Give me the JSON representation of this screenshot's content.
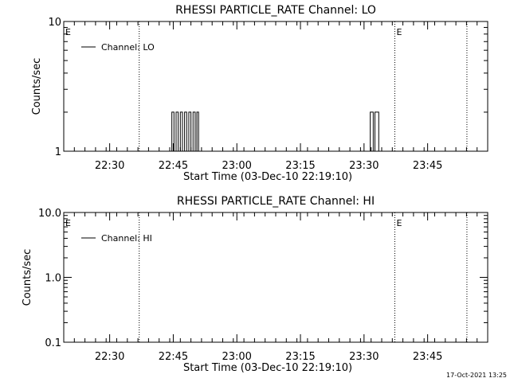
{
  "chart_data": [
    {
      "type": "line",
      "title": "RHESSI PARTICLE_RATE Channel: LO",
      "xlabel": "Start Time (03-Dec-10 22:19:10)",
      "ylabel": "Counts/sec",
      "yscale": "log",
      "ylim": [
        1,
        10
      ],
      "y_tick_labels": [
        "1",
        "10"
      ],
      "x_tick_labels": [
        "22:30",
        "22:45",
        "23:00",
        "23:15",
        "23:30",
        "23:45"
      ],
      "x_tick_minutes": [
        10.833,
        25.833,
        40.833,
        55.833,
        70.833,
        85.833
      ],
      "xlim_minutes": [
        0,
        100
      ],
      "legend": {
        "entries": [
          "Channel: LO"
        ],
        "position": "top-left"
      },
      "markers": [
        {
          "label": "E",
          "minute": 0
        },
        {
          "label": "E",
          "minute": 78.1
        }
      ],
      "vlines_minutes": [
        17.8,
        78.1,
        95.1
      ],
      "series": [
        {
          "name": "Channel: LO",
          "points": [
            [
              25.0,
              1
            ],
            [
              25.5,
              2
            ],
            [
              26.0,
              1
            ],
            [
              26.5,
              2
            ],
            [
              27.0,
              1
            ],
            [
              27.5,
              2
            ],
            [
              28.0,
              1
            ],
            [
              28.5,
              2
            ],
            [
              29.0,
              1
            ],
            [
              29.5,
              2
            ],
            [
              30.0,
              1
            ],
            [
              30.5,
              2
            ],
            [
              31.0,
              1
            ],
            [
              31.4,
              2
            ],
            [
              31.8,
              1
            ],
            [
              72.0,
              1
            ],
            [
              72.3,
              2
            ],
            [
              72.7,
              2
            ],
            [
              73.0,
              1
            ],
            [
              73.4,
              2
            ],
            [
              74.0,
              2
            ],
            [
              74.3,
              1
            ]
          ]
        }
      ]
    },
    {
      "type": "line",
      "title": "RHESSI PARTICLE_RATE Channel: HI",
      "xlabel": "Start Time (03-Dec-10 22:19:10)",
      "ylabel": "Counts/sec",
      "yscale": "log",
      "ylim": [
        0.1,
        10
      ],
      "y_tick_labels": [
        "0.1",
        "1.0",
        "10.0"
      ],
      "x_tick_labels": [
        "22:30",
        "22:45",
        "23:00",
        "23:15",
        "23:30",
        "23:45"
      ],
      "x_tick_minutes": [
        10.833,
        25.833,
        40.833,
        55.833,
        70.833,
        85.833
      ],
      "xlim_minutes": [
        0,
        100
      ],
      "legend": {
        "entries": [
          "Channel: HI"
        ],
        "position": "top-left"
      },
      "markers": [
        {
          "label": "E",
          "minute": 0
        },
        {
          "label": "E",
          "minute": 78.1
        }
      ],
      "vlines_minutes": [
        17.8,
        78.1,
        95.1
      ],
      "series": [
        {
          "name": "Channel: HI",
          "points": []
        }
      ]
    }
  ],
  "footer": {
    "timestamp": "17-Oct-2021 13:25"
  }
}
